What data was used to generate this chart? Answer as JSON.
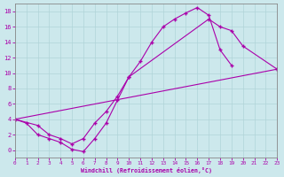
{
  "bg_color": "#cce8ec",
  "line_color": "#aa00aa",
  "grid_color": "#b0d4d8",
  "xlabel": "Windchill (Refroidissement éolien,°C)",
  "xlim": [
    0,
    23
  ],
  "ylim": [
    -1,
    19
  ],
  "xticks": [
    0,
    1,
    2,
    3,
    4,
    5,
    6,
    7,
    8,
    9,
    10,
    11,
    12,
    13,
    14,
    15,
    16,
    17,
    18,
    19,
    20,
    21,
    22,
    23
  ],
  "yticks": [
    0,
    2,
    4,
    6,
    8,
    10,
    12,
    14,
    16,
    18
  ],
  "curve1_x": [
    0,
    1,
    2,
    3,
    4,
    5,
    6,
    7,
    8,
    9,
    10,
    11,
    12,
    13,
    14,
    15,
    16,
    17,
    18,
    19
  ],
  "curve1_y": [
    4.0,
    3.5,
    2.0,
    1.5,
    1.0,
    0.1,
    -0.2,
    1.5,
    3.5,
    6.5,
    9.5,
    11.5,
    14.0,
    16.0,
    17.0,
    17.8,
    18.5,
    17.5,
    13.0,
    11.0
  ],
  "curve2_x": [
    0,
    2,
    3,
    4,
    5,
    6,
    7,
    8,
    9,
    10,
    17,
    18,
    19,
    20,
    23
  ],
  "curve2_y": [
    4.0,
    3.2,
    2.0,
    1.5,
    0.8,
    1.5,
    3.5,
    5.0,
    7.0,
    9.5,
    17.0,
    16.0,
    15.5,
    13.5,
    10.5
  ],
  "curve3_x": [
    0,
    23
  ],
  "curve3_y": [
    4.0,
    10.5
  ]
}
